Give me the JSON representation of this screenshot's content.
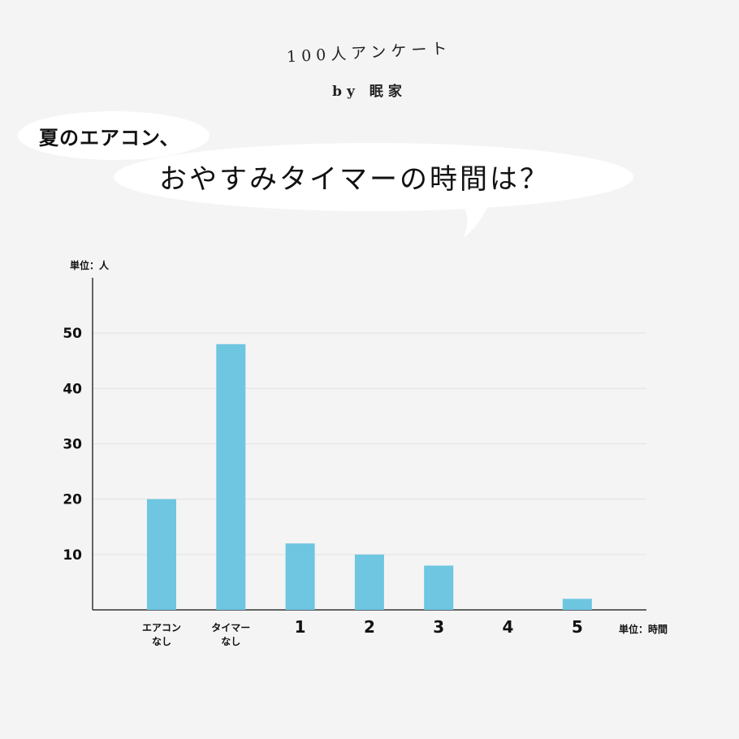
{
  "header": {
    "survey_title": "100人アンケート",
    "by_line": "by 眠家"
  },
  "question": {
    "line1": "夏のエアコン、",
    "line2": "おやすみタイマーの時間は？"
  },
  "chart_data": {
    "type": "bar",
    "categories": [
      [
        "エアコン",
        "なし"
      ],
      [
        "タイマー",
        "なし"
      ],
      [
        "1"
      ],
      [
        "2"
      ],
      [
        "3"
      ],
      [
        "4"
      ],
      [
        "5"
      ]
    ],
    "values": [
      20,
      48,
      12,
      10,
      8,
      0,
      2
    ],
    "yticks": [
      10,
      20,
      30,
      40,
      50
    ],
    "ylim": [
      0,
      60
    ],
    "y_unit_label": "単位：人",
    "x_unit_label": "単位：時間",
    "grid": true,
    "bar_color": "#6ec6e0"
  }
}
